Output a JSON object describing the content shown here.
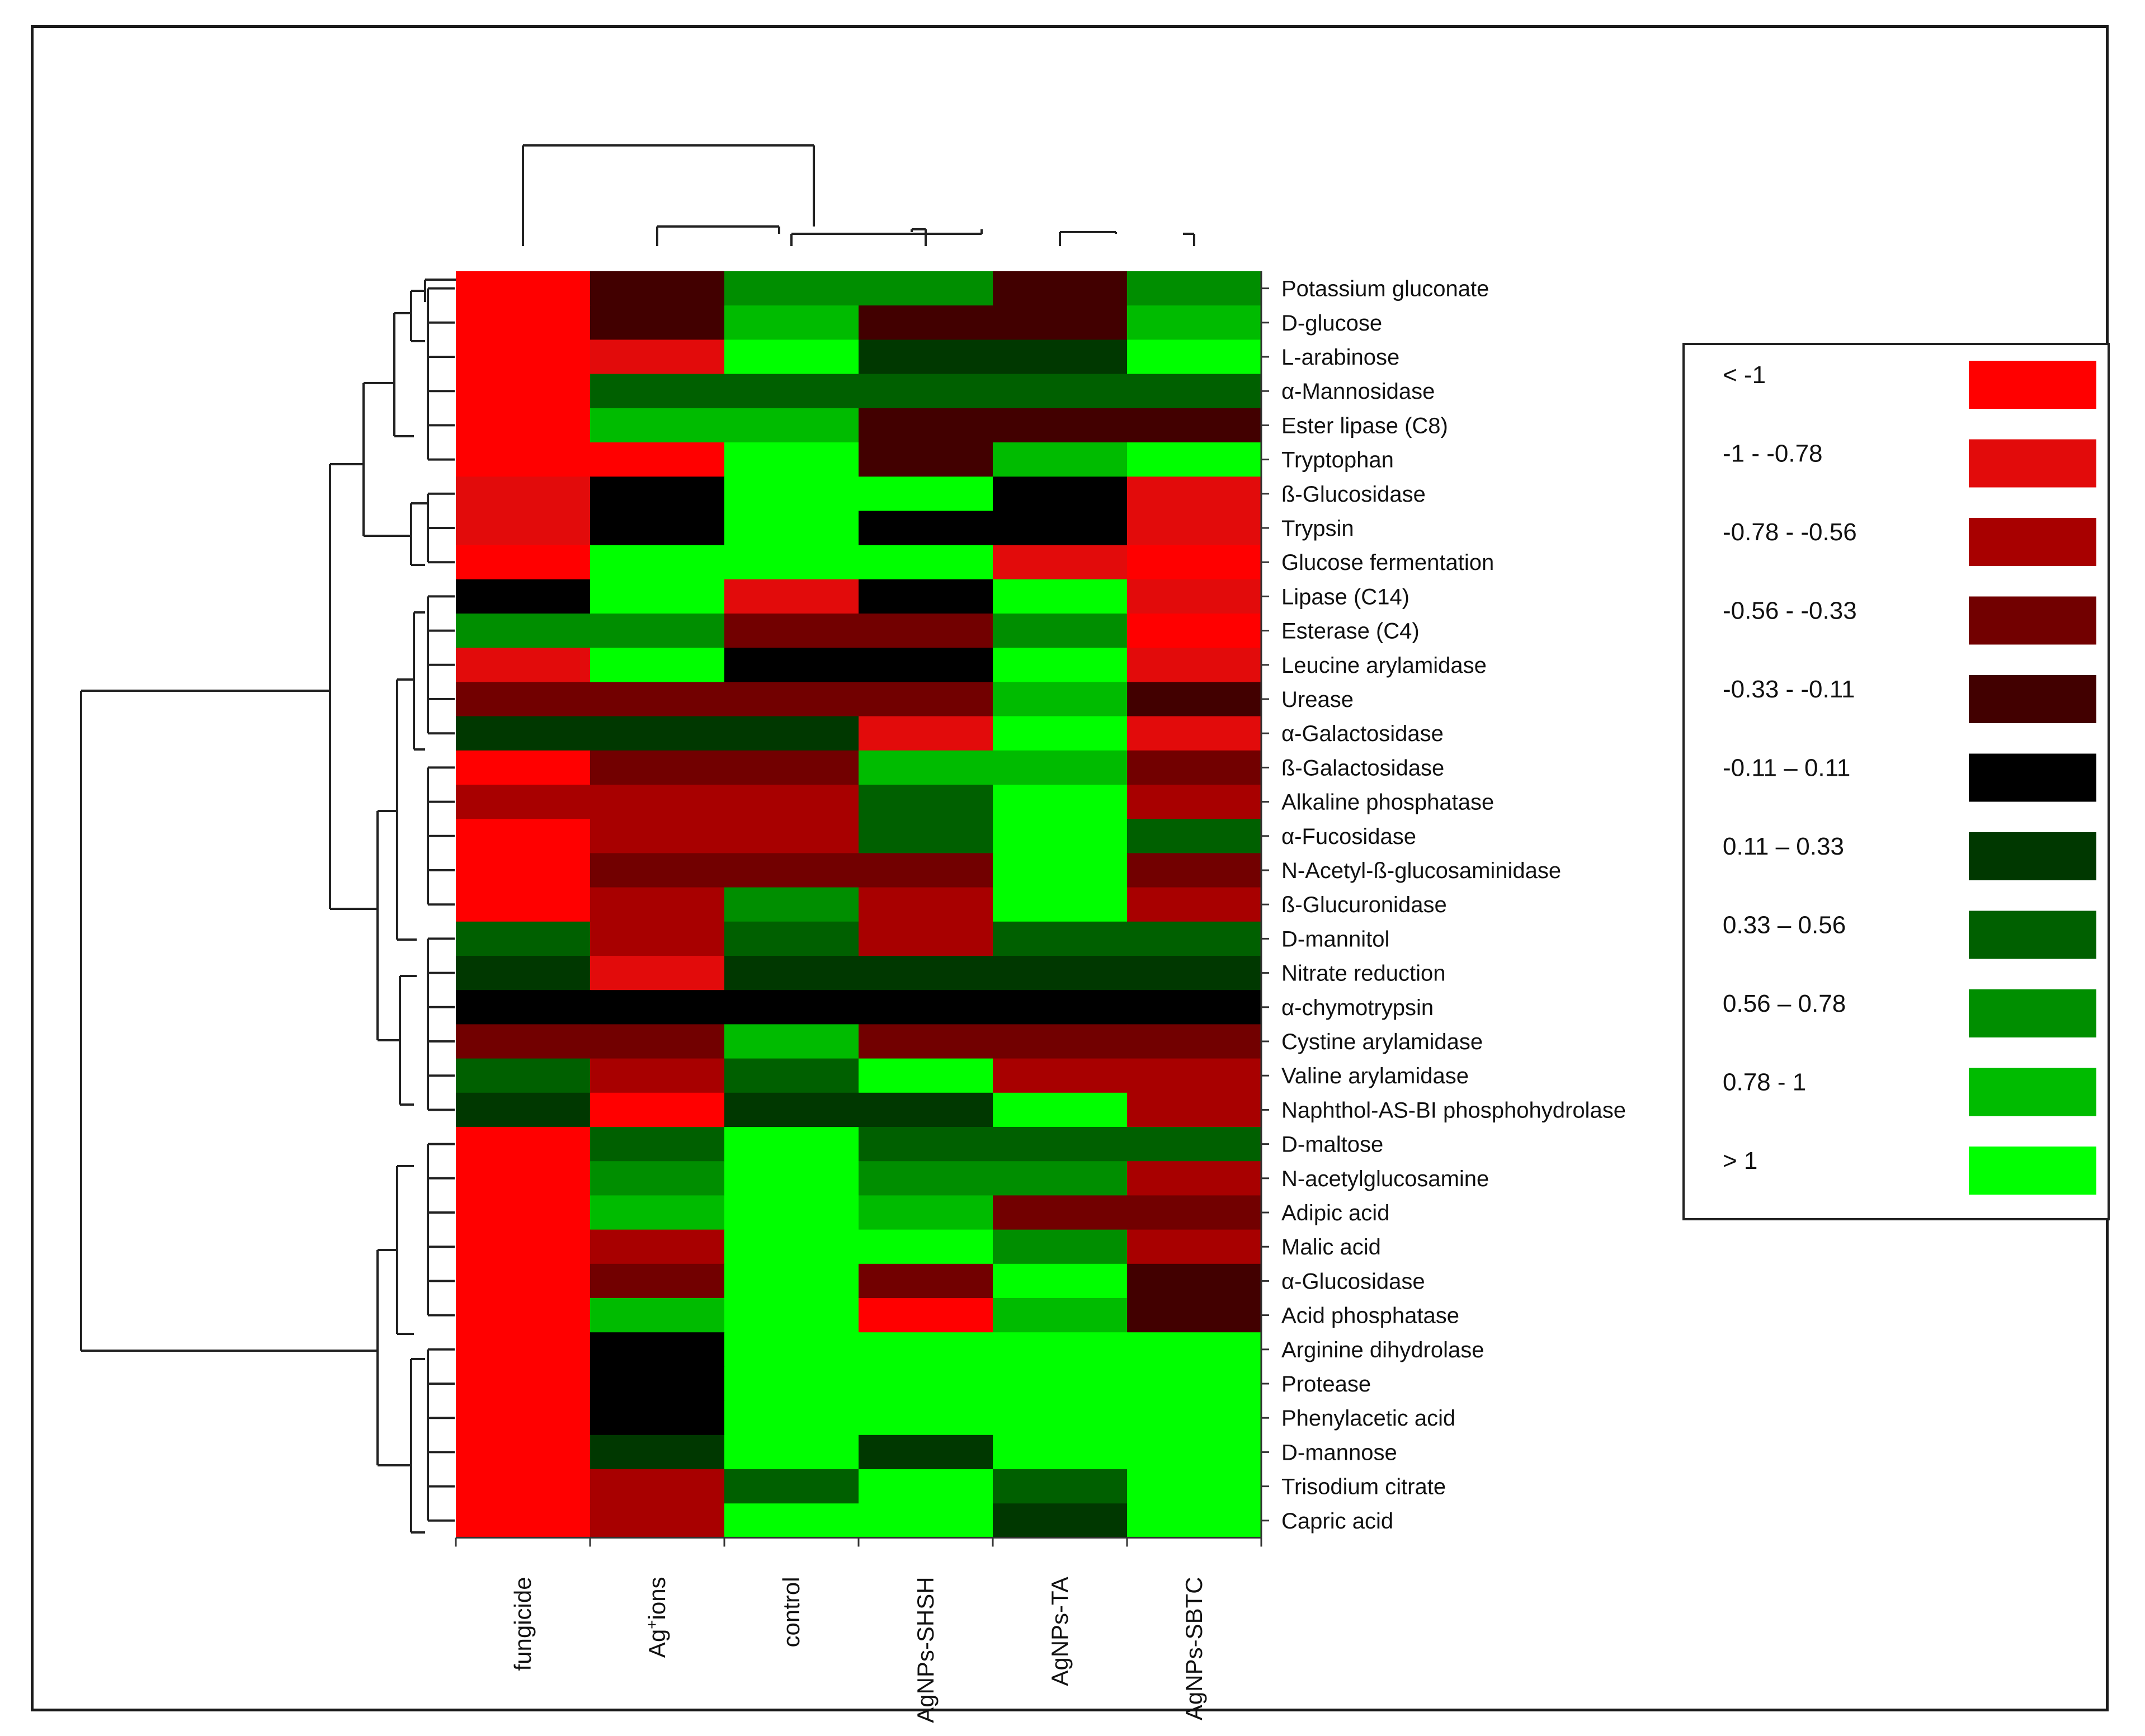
{
  "chart_data": {
    "type": "heatmap",
    "title": "",
    "columns": [
      "fungicide",
      "Ag+ions",
      "control",
      "AgNPs-SHSH",
      "AgNPs-TA",
      "AgNPs-SBTC"
    ],
    "rows": [
      "Potassium gluconate",
      "D-glucose",
      "L-arabinose",
      "α-Mannosidase",
      "Ester lipase (C8)",
      "Tryptophan",
      "ß-Glucosidase",
      "Trypsin",
      "Glucose fermentation",
      "Lipase (C14)",
      "Esterase (C4)",
      "Leucine arylamidase",
      "Urease",
      "α-Galactosidase",
      "ß-Galactosidase",
      "Alkaline phosphatase",
      "α-Fucosidase",
      "N-Acetyl-ß-glucosaminidase",
      "ß-Glucuronidase",
      "D-mannitol",
      "Nitrate reduction",
      "α-chymotrypsin",
      "Cystine arylamidase",
      "Valine arylamidase",
      "Naphthol-AS-BI phosphohydrolase",
      "D-maltose",
      "N-acetylglucosamine",
      "Adipic acid",
      "Malic acid",
      "α-Glucosidase",
      "Acid phosphatase",
      "Arginine dihydrolase",
      "Protease",
      "Phenylacetic acid",
      "D-mannose",
      "Trisodium citrate",
      "Capric acid"
    ],
    "values": [
      [
        -1.2,
        -0.22,
        0.67,
        0.67,
        -0.22,
        0.67
      ],
      [
        -1.2,
        -0.22,
        0.89,
        -0.22,
        -0.22,
        0.89
      ],
      [
        -1.2,
        -0.89,
        1.2,
        0.22,
        0.22,
        1.2
      ],
      [
        -1.2,
        0.45,
        0.45,
        0.45,
        0.45,
        0.45
      ],
      [
        -1.2,
        0.89,
        0.89,
        -0.22,
        -0.22,
        -0.22
      ],
      [
        -1.2,
        -1.2,
        1.2,
        -0.22,
        0.89,
        1.2
      ],
      [
        -0.89,
        0.0,
        1.2,
        1.2,
        0.0,
        -0.89
      ],
      [
        -0.89,
        0.0,
        1.2,
        0.0,
        0.0,
        -0.89
      ],
      [
        -1.2,
        1.2,
        1.2,
        1.2,
        -0.89,
        -1.2
      ],
      [
        0.0,
        1.2,
        -0.89,
        0.0,
        1.2,
        -0.89
      ],
      [
        0.67,
        0.67,
        -0.45,
        -0.45,
        0.67,
        -1.2
      ],
      [
        -0.89,
        1.2,
        0.0,
        0.0,
        1.2,
        -0.89
      ],
      [
        -0.45,
        -0.45,
        -0.45,
        -0.45,
        0.89,
        -0.22
      ],
      [
        0.22,
        0.22,
        0.22,
        -0.89,
        1.2,
        -0.89
      ],
      [
        -1.2,
        -0.45,
        -0.45,
        0.89,
        0.89,
        -0.45
      ],
      [
        -0.67,
        -0.67,
        -0.67,
        0.45,
        1.2,
        -0.67
      ],
      [
        -1.2,
        -0.67,
        -0.67,
        0.45,
        1.2,
        0.45
      ],
      [
        -1.2,
        -0.45,
        -0.45,
        -0.45,
        1.2,
        -0.45
      ],
      [
        -1.2,
        -0.67,
        0.67,
        -0.67,
        1.2,
        -0.67
      ],
      [
        0.45,
        -0.67,
        0.45,
        -0.67,
        0.45,
        0.45
      ],
      [
        0.22,
        -0.89,
        0.22,
        0.22,
        0.22,
        0.22
      ],
      [
        0.0,
        0.0,
        0.0,
        0.0,
        0.0,
        0.0
      ],
      [
        -0.45,
        -0.45,
        0.89,
        -0.45,
        -0.45,
        -0.45
      ],
      [
        0.45,
        -0.67,
        0.45,
        1.2,
        -0.67,
        -0.67
      ],
      [
        0.22,
        -1.2,
        0.22,
        0.22,
        1.2,
        -0.67
      ],
      [
        -1.2,
        0.45,
        1.2,
        0.45,
        0.45,
        0.45
      ],
      [
        -1.2,
        0.67,
        1.2,
        0.67,
        0.67,
        -0.67
      ],
      [
        -1.2,
        0.89,
        1.2,
        0.89,
        -0.45,
        -0.45
      ],
      [
        -1.2,
        -0.67,
        1.2,
        1.2,
        0.67,
        -0.67
      ],
      [
        -1.2,
        -0.45,
        1.2,
        -0.45,
        1.2,
        -0.22
      ],
      [
        -1.2,
        0.89,
        1.2,
        -1.2,
        0.89,
        -0.22
      ],
      [
        -1.2,
        0.0,
        1.2,
        1.2,
        1.2,
        1.2
      ],
      [
        -1.2,
        0.0,
        1.2,
        1.2,
        1.2,
        1.2
      ],
      [
        -1.2,
        0.0,
        1.2,
        1.2,
        1.2,
        1.2
      ],
      [
        -1.2,
        0.22,
        1.2,
        0.22,
        1.2,
        1.2
      ],
      [
        -1.2,
        -0.67,
        0.45,
        1.2,
        0.45,
        1.2
      ],
      [
        -1.2,
        -0.67,
        1.2,
        1.2,
        0.22,
        1.2
      ]
    ],
    "legend": {
      "position": "right",
      "bins": [
        {
          "label": "< -1",
          "color": "#ff0000"
        },
        {
          "label": "-1 - -0.78",
          "color": "#e20b0b"
        },
        {
          "label": "-0.78 - -0.56",
          "color": "#a80000"
        },
        {
          "label": "-0.56 - -0.33",
          "color": "#720000"
        },
        {
          "label": "-0.33 - -0.11",
          "color": "#420000"
        },
        {
          "label": "-0.11 – 0.11",
          "color": "#000000"
        },
        {
          "label": "0.11 – 0.33",
          "color": "#003800"
        },
        {
          "label": "0.33 – 0.56",
          "color": "#006000"
        },
        {
          "label": "0.56 – 0.78",
          "color": "#008e00"
        },
        {
          "label": "0.78 - 1",
          "color": "#00bb00"
        },
        {
          "label": "> 1",
          "color": "#00ff00"
        }
      ]
    },
    "dendrograms": {
      "columns": "hierarchical clustering of treatments",
      "rows": "hierarchical clustering of tests"
    }
  }
}
